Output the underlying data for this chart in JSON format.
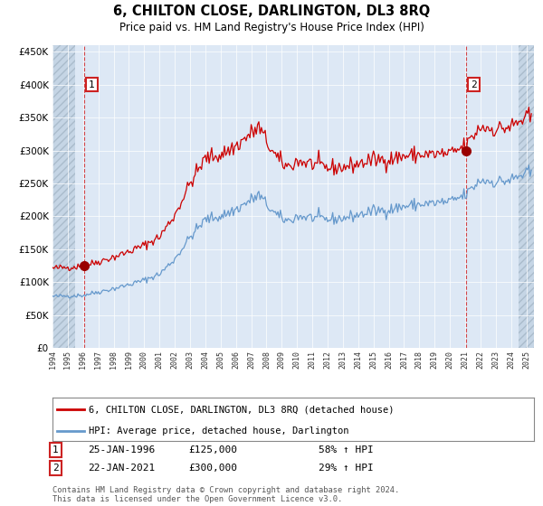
{
  "title": "6, CHILTON CLOSE, DARLINGTON, DL3 8RQ",
  "subtitle": "Price paid vs. HM Land Registry's House Price Index (HPI)",
  "legend_line1": "6, CHILTON CLOSE, DARLINGTON, DL3 8RQ (detached house)",
  "legend_line2": "HPI: Average price, detached house, Darlington",
  "footnote": "Contains HM Land Registry data © Crown copyright and database right 2024.\nThis data is licensed under the Open Government Licence v3.0.",
  "annotation1_date": "25-JAN-1996",
  "annotation1_price": "£125,000",
  "annotation1_hpi": "58% ↑ HPI",
  "annotation2_date": "22-JAN-2021",
  "annotation2_price": "£300,000",
  "annotation2_hpi": "29% ↑ HPI",
  "sale1_year": 1996.07,
  "sale1_price": 125000,
  "sale2_year": 2021.07,
  "sale2_price": 300000,
  "red_line_color": "#cc0000",
  "blue_line_color": "#6699cc",
  "dot_color": "#990000",
  "dashed_line_color": "#cc0000",
  "bg_color": "#dde8f5",
  "hatch_facecolor": "#c5d5e5",
  "grid_color": "#ffffff",
  "ylim": [
    0,
    460000
  ],
  "yticks": [
    0,
    50000,
    100000,
    150000,
    200000,
    250000,
    300000,
    350000,
    400000,
    450000
  ],
  "xlim_start": 1994.0,
  "xlim_end": 2025.5,
  "hatch_left_end": 1995.5,
  "hatch_right_start": 2024.5
}
